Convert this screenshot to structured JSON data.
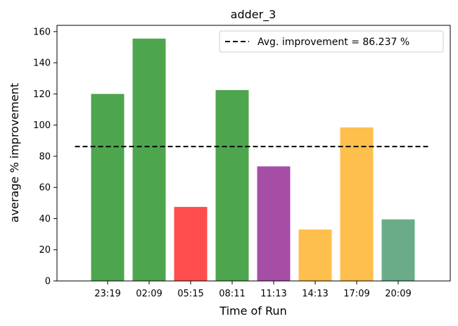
{
  "chart_data": {
    "type": "bar",
    "title": "adder_3",
    "xlabel": "Time of Run",
    "ylabel": "average % improvement",
    "categories": [
      "23:19",
      "02:09",
      "05:15",
      "08:11",
      "11:13",
      "14:13",
      "17:09",
      "20:09"
    ],
    "values": [
      120,
      155.5,
      47.5,
      122.5,
      73.5,
      33,
      98.5,
      39.5
    ],
    "colors": [
      "#4da64d",
      "#4da64d",
      "#ff4d4d",
      "#4da64d",
      "#a64da6",
      "#ffbf4d",
      "#ffbf4d",
      "#6aac87"
    ],
    "ylim": [
      0,
      164
    ],
    "yticks": [
      0,
      20,
      40,
      60,
      80,
      100,
      120,
      140,
      160
    ],
    "grid": false,
    "reference_line": {
      "value": 86.237,
      "style": "dashed",
      "color": "#000000",
      "label": "Avg. improvement = 86.237 %"
    },
    "legend_position": "top-right"
  }
}
